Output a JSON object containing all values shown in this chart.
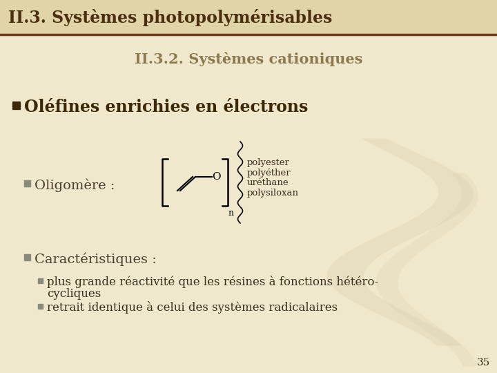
{
  "bg_color": "#f0e8cc",
  "header_bg": "#e0d4a8",
  "header_line_color": "#6b3a1f",
  "header_text": "II.3. Systèmes photopolymérisables",
  "header_text_color": "#4a3010",
  "subtitle_text": "II.3.2. Systèmes cationiques",
  "subtitle_color": "#8a7a50",
  "bullet_color": "#8a8a7a",
  "main_bullet_text_bold": "Oléfines enrichies en électrons",
  "main_bullet_text_normal": " :",
  "main_bullet_color": "#3a2808",
  "sub1_text": "Oligomère :",
  "sub1_color": "#4a4030",
  "sub2_text": "Caractéristiques :",
  "sub2_color": "#4a4030",
  "body_text_color": "#3a3020",
  "page_number": "35",
  "chem_labels": [
    "polyester",
    "polyéther",
    "uréthane",
    "polysiloxan"
  ],
  "swirl_color": "#c8bea0",
  "header_font_size": 17,
  "subtitle_font_size": 15,
  "main_bullet_font_size": 17,
  "sub_font_size": 14,
  "body_font_size": 12
}
